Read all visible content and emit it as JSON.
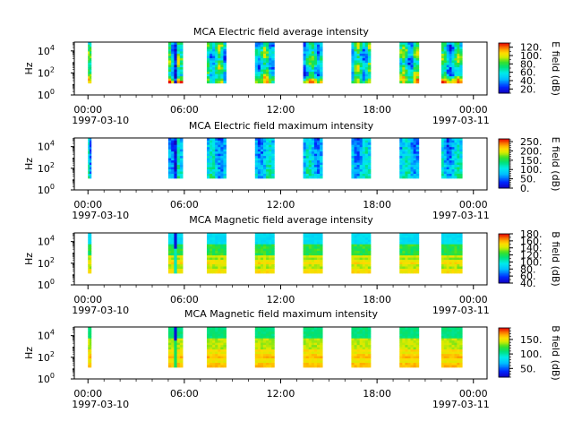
{
  "figure": {
    "x_tick_labels": [
      "00:00",
      "06:00",
      "12:00",
      "18:00",
      "00:00"
    ],
    "x_tick_hours": [
      0,
      6,
      12,
      18,
      24
    ],
    "x_date_left": "1997-03-10",
    "x_date_right": "1997-03-11",
    "y_axis_label": "Hz",
    "y_tick_base": "10",
    "y_tick_exponents": [
      "0",
      "2",
      "4"
    ]
  },
  "chart_data": [
    {
      "type": "heatmap",
      "title": "MCA  Electric field average intensity",
      "xlabel": "",
      "ylabel": "Hz",
      "x_range": [
        "1997-03-10 00:00",
        "1997-03-11 00:00"
      ],
      "y_range_hz": [
        1,
        60000
      ],
      "y_scale": "log",
      "colorbar_label": "E field (dB)",
      "colorbar_range": [
        10,
        130
      ],
      "colorbar_ticks": [
        "20.",
        "40.",
        "60.",
        "80.",
        "100.",
        "120."
      ],
      "colorbar_tick_values": [
        20,
        40,
        60,
        80,
        100,
        120
      ],
      "colormap": "rainbow",
      "data_intervals_hours": [
        [
          0.0,
          0.2
        ],
        [
          5.0,
          5.9
        ],
        [
          7.4,
          8.6
        ],
        [
          10.4,
          11.6
        ],
        [
          13.4,
          14.6
        ],
        [
          16.4,
          17.6
        ],
        [
          19.4,
          20.6
        ],
        [
          22.0,
          23.3
        ]
      ],
      "style": "average-electric"
    },
    {
      "type": "heatmap",
      "title": "MCA  Electric field maximum intensity",
      "xlabel": "",
      "ylabel": "Hz",
      "x_range": [
        "1997-03-10 00:00",
        "1997-03-11 00:00"
      ],
      "y_range_hz": [
        1,
        60000
      ],
      "y_scale": "log",
      "colorbar_label": "E field (dB)",
      "colorbar_range": [
        0,
        265
      ],
      "colorbar_ticks": [
        "0.",
        "50.",
        "100.",
        "150.",
        "200.",
        "250."
      ],
      "colorbar_tick_values": [
        0,
        50,
        100,
        150,
        200,
        250
      ],
      "colormap": "rainbow",
      "data_intervals_hours": [
        [
          0.0,
          0.2
        ],
        [
          5.0,
          5.9
        ],
        [
          7.4,
          8.6
        ],
        [
          10.4,
          11.6
        ],
        [
          13.4,
          14.6
        ],
        [
          16.4,
          17.6
        ],
        [
          19.4,
          20.6
        ],
        [
          22.0,
          23.3
        ]
      ],
      "style": "maximum-electric"
    },
    {
      "type": "heatmap",
      "title": "MCA  Magnetic field average intensity",
      "xlabel": "",
      "ylabel": "Hz",
      "x_range": [
        "1997-03-10 00:00",
        "1997-03-11 00:00"
      ],
      "y_range_hz": [
        1,
        60000
      ],
      "y_scale": "log",
      "colorbar_label": "B field (dB)",
      "colorbar_range": [
        40,
        180
      ],
      "colorbar_ticks": [
        "40.",
        "60.",
        "80.",
        "100.",
        "120.",
        "140.",
        "160.",
        "180."
      ],
      "colorbar_tick_values": [
        40,
        60,
        80,
        100,
        120,
        140,
        160,
        180
      ],
      "colormap": "rainbow",
      "data_intervals_hours": [
        [
          0.0,
          0.2
        ],
        [
          5.0,
          5.9
        ],
        [
          7.4,
          8.6
        ],
        [
          10.4,
          11.6
        ],
        [
          13.4,
          14.6
        ],
        [
          16.4,
          17.6
        ],
        [
          19.4,
          20.6
        ],
        [
          22.0,
          23.3
        ]
      ],
      "style": "average-magnetic"
    },
    {
      "type": "heatmap",
      "title": "MCA  Magnetic field maximum intensity",
      "xlabel": "",
      "ylabel": "Hz",
      "x_range": [
        "1997-03-10 00:00",
        "1997-03-11 00:00"
      ],
      "y_range_hz": [
        1,
        60000
      ],
      "y_scale": "log",
      "colorbar_label": "B field (dB)",
      "colorbar_range": [
        20,
        190
      ],
      "colorbar_ticks": [
        "50.",
        "100.",
        "150."
      ],
      "colorbar_tick_values": [
        50,
        100,
        150
      ],
      "colormap": "rainbow",
      "data_intervals_hours": [
        [
          0.0,
          0.2
        ],
        [
          5.0,
          5.9
        ],
        [
          7.4,
          8.6
        ],
        [
          10.4,
          11.6
        ],
        [
          13.4,
          14.6
        ],
        [
          16.4,
          17.6
        ],
        [
          19.4,
          20.6
        ],
        [
          22.0,
          23.3
        ]
      ],
      "style": "maximum-magnetic"
    }
  ]
}
